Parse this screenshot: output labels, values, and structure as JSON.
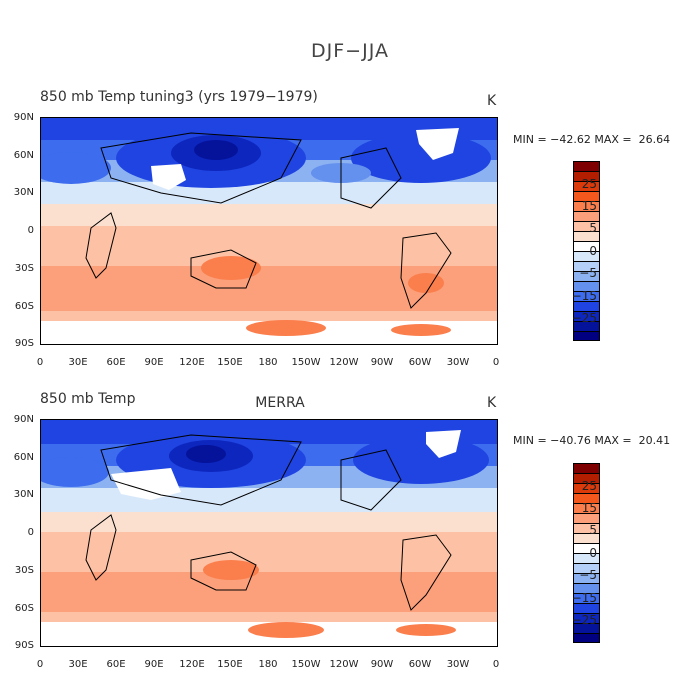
{
  "page_title": "DJF−JJA",
  "colorbar": {
    "colors": [
      "#7f0000",
      "#b31d00",
      "#db3a0b",
      "#f5581c",
      "#fb7e4d",
      "#fba07a",
      "#fdc2a5",
      "#fbe0d0",
      "#ffffff",
      "#d8e8fb",
      "#b5d0f8",
      "#8cb2f2",
      "#6490ee",
      "#3d6cee",
      "#1f44e1",
      "#0d26bd",
      "#05129a",
      "#000080"
    ],
    "labels": [
      "25",
      "15",
      "5",
      "0",
      "−5",
      "−15",
      "−25"
    ]
  },
  "axes": {
    "lat_labels": [
      "90N",
      "60N",
      "30N",
      "0",
      "30S",
      "60S",
      "90S"
    ],
    "lon_labels": [
      "0",
      "30E",
      "60E",
      "90E",
      "120E",
      "150E",
      "180",
      "150W",
      "120W",
      "90W",
      "60W",
      "30W",
      "0"
    ]
  },
  "panels": [
    {
      "left_title": "850 mb Temp   tuning3 (yrs 1979−1979)",
      "center_title": "",
      "unit": "K",
      "min_max": "MIN = −42.62 MAX =  26.64"
    },
    {
      "left_title": "850 mb Temp",
      "center_title": "MERRA",
      "unit": "K",
      "min_max": "MIN = −40.76 MAX =  20.41"
    }
  ]
}
